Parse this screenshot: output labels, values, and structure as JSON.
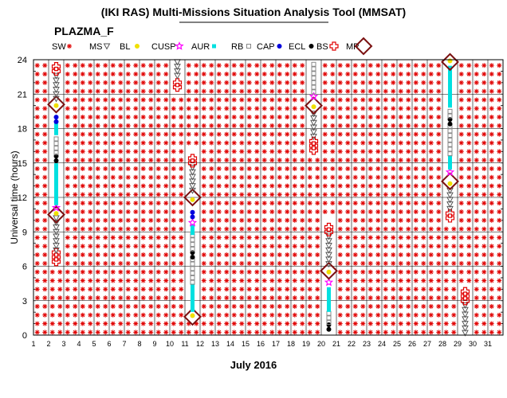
{
  "chart_data": {
    "type": "scatter",
    "title": "(IKI RAS) Multi-Missions Situation Analysis Tool (MMSAT)",
    "subtitle": "PLAZMA_F",
    "xlabel": "July 2016",
    "ylabel": "Universal time (hours)",
    "xlim": [
      1,
      32
    ],
    "ylim": [
      0,
      24
    ],
    "x_ticks": [
      1,
      2,
      3,
      4,
      5,
      6,
      7,
      8,
      9,
      10,
      11,
      12,
      13,
      14,
      15,
      16,
      17,
      18,
      19,
      20,
      21,
      22,
      23,
      24,
      25,
      26,
      27,
      28,
      29,
      30,
      31
    ],
    "y_ticks": [
      0,
      3,
      6,
      9,
      12,
      15,
      18,
      21,
      24
    ],
    "grid": true,
    "legend": {
      "placement": "top",
      "items": [
        {
          "name": "SW",
          "marker": "asterisk",
          "color": "#e00000"
        },
        {
          "name": "MS",
          "marker": "triangle-down",
          "color": "#555555"
        },
        {
          "name": "BL",
          "marker": "dot",
          "color": "#f0e000"
        },
        {
          "name": "CUSP",
          "marker": "star",
          "color": "#ff00ff"
        },
        {
          "name": "AUR",
          "marker": "square",
          "color": "#00e0e0"
        },
        {
          "name": "RB",
          "marker": "square-open",
          "color": "#888888"
        },
        {
          "name": "CAP",
          "marker": "dot",
          "color": "#0000dd"
        },
        {
          "name": "ECL",
          "marker": "dot",
          "color": "#000000"
        },
        {
          "name": "BS",
          "marker": "cross",
          "color": "#e00000"
        },
        {
          "name": "MP",
          "marker": "diamond",
          "color": "#7a1010"
        }
      ]
    },
    "passes": [
      {
        "x": 2.5,
        "segments": [
          {
            "region": "BS",
            "from": 6.4,
            "to": 7.2
          },
          {
            "region": "MS",
            "from": 7.4,
            "to": 10.2
          },
          {
            "region": "MP",
            "at": 10.5
          },
          {
            "region": "BL",
            "at": 10.6
          },
          {
            "region": "CUSP",
            "at": 11.1
          },
          {
            "region": "AUR",
            "from": 11.5,
            "to": 14.8
          },
          {
            "region": "ECL",
            "from": 15.2,
            "to": 15.6
          },
          {
            "region": "RB",
            "from": 15.9,
            "to": 17.4
          },
          {
            "region": "AUR",
            "from": 17.6,
            "to": 18.5
          },
          {
            "region": "CAP",
            "from": 18.6,
            "to": 19.1
          },
          {
            "region": "MP",
            "at": 20.1
          },
          {
            "region": "BL",
            "at": 20.0
          },
          {
            "region": "MS",
            "from": 20.6,
            "to": 22.8
          },
          {
            "region": "BS",
            "from": 23.0,
            "to": 23.6
          }
        ]
      },
      {
        "x": 10.5,
        "segments": [
          {
            "region": "BS",
            "from": 21.6,
            "to": 22.3
          },
          {
            "region": "MS",
            "from": 22.6,
            "to": 23.8
          }
        ]
      },
      {
        "x": 11.5,
        "segments": [
          {
            "region": "MP",
            "at": 1.6
          },
          {
            "region": "BL",
            "at": 1.7
          },
          {
            "region": "AUR",
            "from": 2.2,
            "to": 4.4
          },
          {
            "region": "RB",
            "from": 4.6,
            "to": 6.6
          },
          {
            "region": "ECL",
            "from": 6.8,
            "to": 7.2
          },
          {
            "region": "RB",
            "from": 7.5,
            "to": 8.7
          },
          {
            "region": "AUR",
            "from": 8.9,
            "to": 9.6
          },
          {
            "region": "CUSP",
            "at": 9.8
          },
          {
            "region": "CAP",
            "from": 10.3,
            "to": 10.9
          },
          {
            "region": "BL",
            "at": 11.8
          },
          {
            "region": "MP",
            "at": 12.0
          },
          {
            "region": "MS",
            "from": 12.6,
            "to": 14.8
          },
          {
            "region": "BS",
            "from": 15.0,
            "to": 15.6
          }
        ]
      },
      {
        "x": 19.5,
        "segments": [
          {
            "region": "BS",
            "from": 16.1,
            "to": 17.1
          },
          {
            "region": "MS",
            "from": 17.3,
            "to": 19.6
          },
          {
            "region": "BL",
            "at": 19.9
          },
          {
            "region": "MP",
            "at": 20.0
          },
          {
            "region": "CUSP",
            "at": 20.8
          },
          {
            "region": "RB",
            "from": 21.2,
            "to": 23.8
          }
        ]
      },
      {
        "x": 20.5,
        "segments": [
          {
            "region": "ECL",
            "from": 0.5,
            "to": 0.9
          },
          {
            "region": "RB",
            "from": 1.1,
            "to": 2.0
          },
          {
            "region": "AUR",
            "from": 2.2,
            "to": 4.2
          },
          {
            "region": "CUSP",
            "at": 4.6
          },
          {
            "region": "BL",
            "at": 5.5
          },
          {
            "region": "MP",
            "at": 5.6
          },
          {
            "region": "MS",
            "from": 6.2,
            "to": 8.8
          },
          {
            "region": "BS",
            "from": 9.0,
            "to": 9.6
          }
        ]
      },
      {
        "x": 28.5,
        "segments": [
          {
            "region": "BS",
            "from": 10.2,
            "to": 10.8
          },
          {
            "region": "MS",
            "from": 11.0,
            "to": 12.6
          },
          {
            "region": "BL",
            "at": 13.2
          },
          {
            "region": "MP",
            "at": 13.4
          },
          {
            "region": "CUSP",
            "at": 14.2
          },
          {
            "region": "AUR",
            "from": 14.6,
            "to": 15.6
          },
          {
            "region": "RB",
            "from": 15.8,
            "to": 18.3
          },
          {
            "region": "ECL",
            "from": 18.4,
            "to": 18.9
          },
          {
            "region": "RB",
            "from": 19.1,
            "to": 19.8
          },
          {
            "region": "AUR",
            "from": 20.0,
            "to": 23.4
          },
          {
            "region": "MP",
            "at": 23.8
          },
          {
            "region": "BL",
            "at": 23.9
          }
        ]
      },
      {
        "x": 29.5,
        "segments": [
          {
            "region": "MS",
            "from": 0.2,
            "to": 2.8
          },
          {
            "region": "BS",
            "from": 3.0,
            "to": 3.8
          }
        ]
      }
    ]
  }
}
